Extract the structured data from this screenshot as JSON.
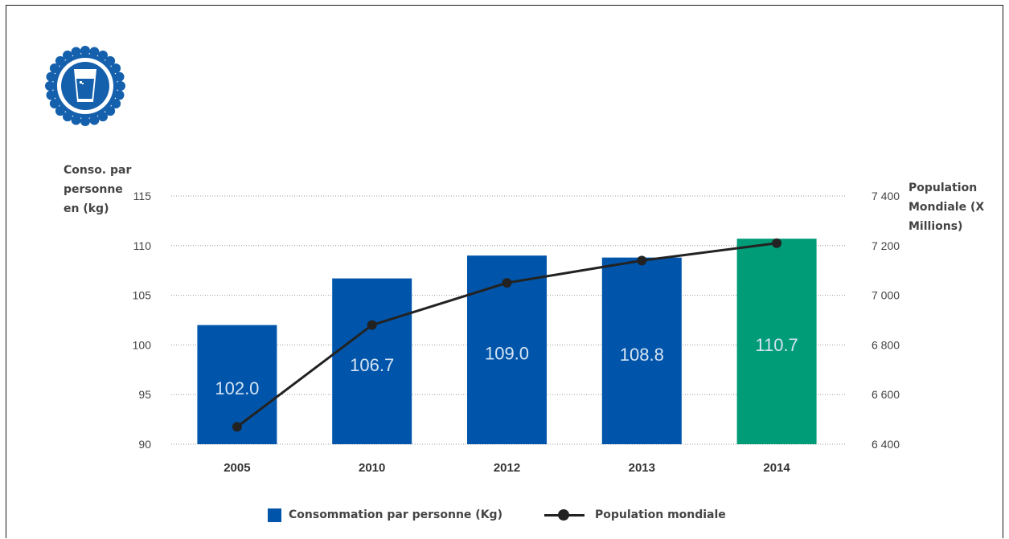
{
  "colors": {
    "bar_primary": "#0055aa",
    "bar_highlight": "#009b77",
    "line": "#222222",
    "badge": "#1560ad"
  },
  "badge_icon": "water-glass-icon",
  "chart_data": {
    "type": "bar",
    "categories": [
      "2005",
      "2010",
      "2012",
      "2013",
      "2014"
    ],
    "series": [
      {
        "name": "Consommation par personne (Kg)",
        "type": "bar",
        "axis": "left",
        "values": [
          102.0,
          106.7,
          109.0,
          108.8,
          110.7
        ],
        "data_labels": [
          "102.0",
          "106.7",
          "109.0",
          "108.8",
          "110.7"
        ],
        "highlight_last": true
      },
      {
        "name": "Population mondiale",
        "type": "line",
        "axis": "right",
        "values": [
          6470,
          6880,
          7050,
          7140,
          7210
        ]
      }
    ],
    "left_axis": {
      "title": "Conso. par\npersonne\nen (kg)",
      "range": [
        90,
        115
      ],
      "ticks": [
        "90",
        "95",
        "100",
        "105",
        "110",
        "115"
      ]
    },
    "right_axis": {
      "title": "Population\nMondiale (X\nMillions)",
      "range": [
        6400,
        7400
      ],
      "ticks": [
        "6 400",
        "6 600",
        "6 800",
        "7 000",
        "7 200",
        "7 400"
      ]
    },
    "grid": "dotted horizontal",
    "legend": "bottom"
  }
}
